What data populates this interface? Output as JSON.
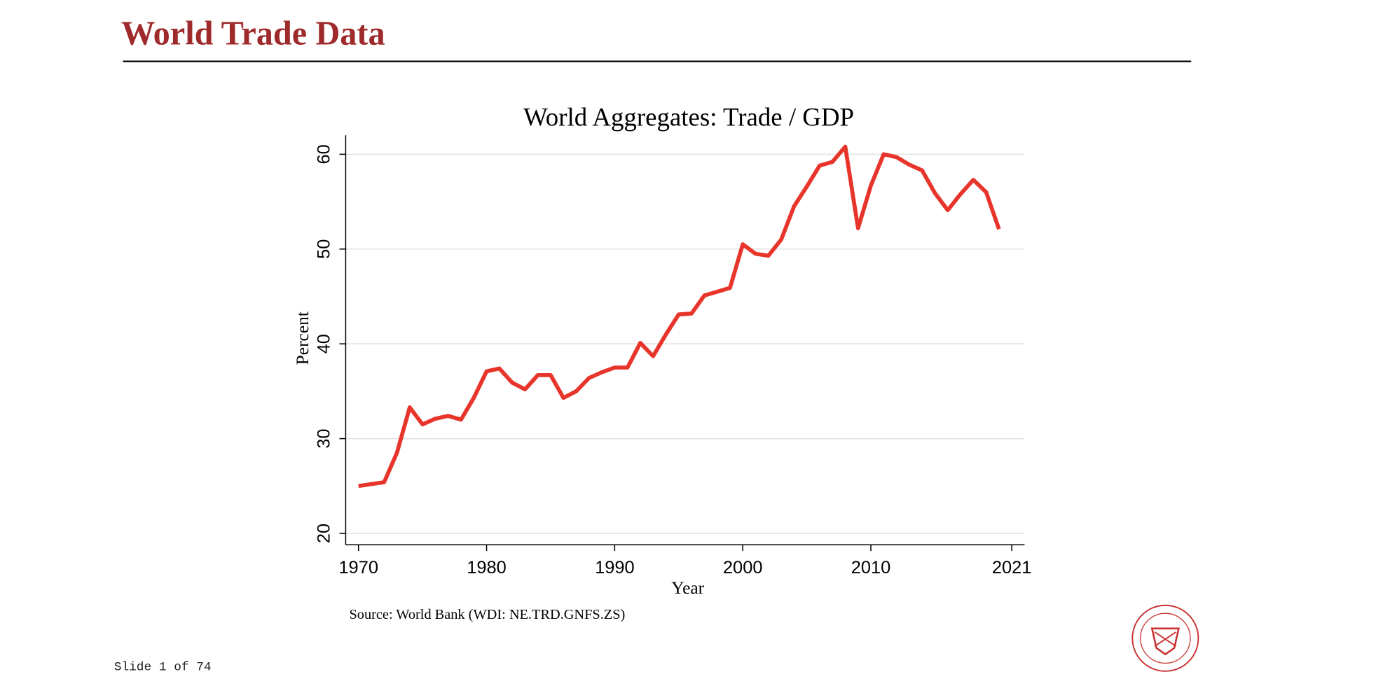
{
  "slide": {
    "title": "World Trade Data",
    "counter": "Slide 1 of 74"
  },
  "chart_data": {
    "type": "line",
    "title": "World Aggregates: Trade / GDP",
    "x_label": "Year",
    "y_label": "Percent",
    "note": "Source: World Bank (WDI: NE.TRD.GNFS.ZS)",
    "x": [
      1970,
      1971,
      1972,
      1973,
      1974,
      1975,
      1976,
      1977,
      1978,
      1979,
      1980,
      1981,
      1982,
      1983,
      1984,
      1985,
      1986,
      1987,
      1988,
      1989,
      1990,
      1991,
      1992,
      1993,
      1994,
      1995,
      1996,
      1997,
      1998,
      1999,
      2000,
      2001,
      2002,
      2003,
      2004,
      2005,
      2006,
      2007,
      2008,
      2009,
      2010,
      2011,
      2012,
      2013,
      2014,
      2015,
      2016,
      2017,
      2018,
      2019,
      2020
    ],
    "series": [
      {
        "name": "Trade / GDP",
        "color": "#e8352b",
        "values": [
          25.0,
          25.2,
          25.4,
          28.5,
          33.3,
          31.5,
          32.1,
          32.4,
          32.0,
          34.3,
          37.1,
          37.4,
          35.9,
          35.2,
          36.7,
          36.7,
          34.3,
          35.0,
          36.4,
          37.0,
          37.5,
          37.5,
          40.1,
          38.7,
          41.0,
          43.1,
          43.2,
          45.1,
          45.5,
          45.9,
          50.5,
          49.5,
          49.3,
          51.0,
          54.5,
          56.6,
          58.8,
          59.2,
          60.8,
          52.2,
          56.7,
          60.0,
          59.7,
          58.9,
          58.3,
          55.9,
          54.1,
          55.8,
          57.3,
          56.0,
          52.1
        ]
      }
    ],
    "xlim": [
      1969,
      2022
    ],
    "xticks": [
      1970,
      1980,
      1990,
      2000,
      2010,
      2021
    ],
    "ylim": [
      18.8,
      62
    ],
    "yticks": [
      20,
      30,
      40,
      50,
      60
    ],
    "grid": true
  }
}
